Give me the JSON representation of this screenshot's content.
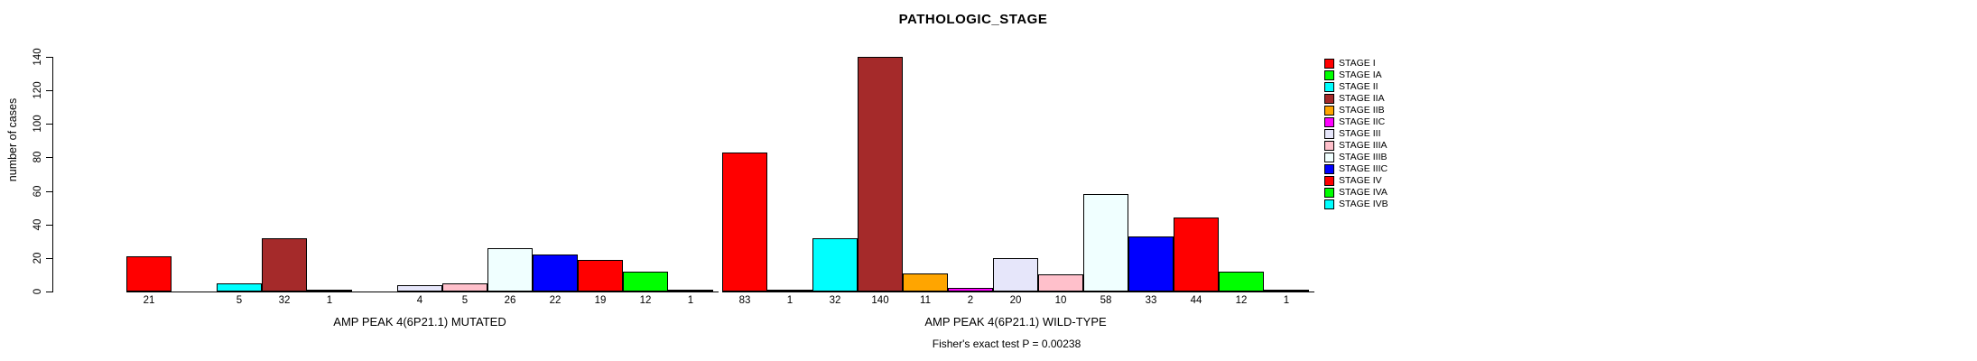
{
  "chart_data": {
    "type": "bar",
    "title": "PATHOLOGIC_STAGE",
    "ylabel": "number of cases",
    "ylim": [
      0,
      140
    ],
    "yticks": [
      0,
      20,
      40,
      60,
      80,
      100,
      120,
      140
    ],
    "grid": false,
    "legend_position": "right-outside",
    "bar_value_labels_visible": true,
    "zero_value_bars": "not drawn and not labeled",
    "categories": [
      "STAGE I",
      "STAGE IA",
      "STAGE II",
      "STAGE IIA",
      "STAGE IIB",
      "STAGE IIC",
      "STAGE III",
      "STAGE IIIA",
      "STAGE IIIB",
      "STAGE IIIC",
      "STAGE IV",
      "STAGE IVA",
      "STAGE IVB"
    ],
    "stages": [
      {
        "label": "STAGE I",
        "color": "#FF0000"
      },
      {
        "label": "STAGE IA",
        "color": "#00FF00"
      },
      {
        "label": "STAGE II",
        "color": "#00FFFF"
      },
      {
        "label": "STAGE IIA",
        "color": "#A52A2A"
      },
      {
        "label": "STAGE IIB",
        "color": "#FFA500"
      },
      {
        "label": "STAGE IIC",
        "color": "#FF00FF"
      },
      {
        "label": "STAGE III",
        "color": "#E6E6FA"
      },
      {
        "label": "STAGE IIIA",
        "color": "#FFC0CB"
      },
      {
        "label": "STAGE IIIB",
        "color": "#F0FFFF"
      },
      {
        "label": "STAGE IIIC",
        "color": "#0000FF"
      },
      {
        "label": "STAGE IV",
        "color": "#FF0000"
      },
      {
        "label": "STAGE IVA",
        "color": "#00FF00"
      },
      {
        "label": "STAGE IVB",
        "color": "#00FFFF"
      }
    ],
    "groups": [
      {
        "label": "AMP PEAK 4(6P21.1) MUTATED",
        "values": [
          21,
          0,
          5,
          32,
          1,
          0,
          4,
          5,
          26,
          22,
          19,
          12,
          1
        ]
      },
      {
        "label": "AMP PEAK 4(6P21.1) WILD-TYPE",
        "values": [
          83,
          1,
          32,
          140,
          11,
          2,
          20,
          10,
          58,
          33,
          44,
          12,
          1
        ]
      }
    ],
    "footer": "Fisher's exact test P = 0.00238",
    "axis_color": "#000000",
    "bar_border_color": "#000000"
  }
}
